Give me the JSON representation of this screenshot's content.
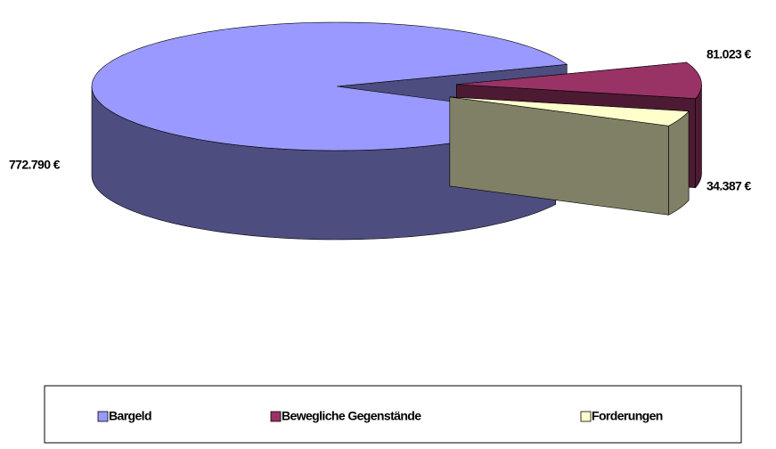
{
  "chart_data": {
    "type": "pie",
    "categories": [
      "Bargeld",
      "Bewegliche Gegenstände",
      "Forderungen"
    ],
    "values": [
      772790,
      81023,
      34387
    ],
    "value_labels": [
      "772.790 €",
      "81.023 €",
      "34.387 €"
    ],
    "colors": [
      "#9999ff",
      "#993366",
      "#ffffcc"
    ],
    "legend": "bottom"
  }
}
